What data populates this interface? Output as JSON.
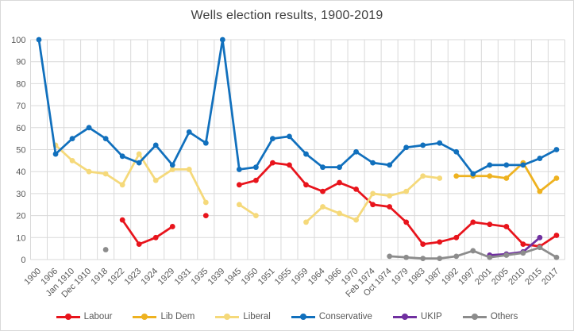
{
  "chart_data": {
    "type": "line",
    "title": "Wells election results, 1900-2019",
    "categories": [
      "1900",
      "1906",
      "Jan 1910",
      "Dec 1910",
      "1918",
      "1922",
      "1923",
      "1924",
      "1929",
      "1931",
      "1935",
      "1939",
      "1945",
      "1950",
      "1951",
      "1955",
      "1959",
      "1964",
      "1966",
      "1970",
      "Feb 1974",
      "Oct 1974",
      "1979",
      "1983",
      "1987",
      "1992",
      "1997",
      "2001",
      "2005",
      "2010",
      "2015",
      "2017"
    ],
    "series": [
      {
        "name": "Labour",
        "color": "#e8141c",
        "values": [
          null,
          null,
          null,
          null,
          null,
          18,
          7,
          10,
          15,
          null,
          20,
          null,
          34,
          36,
          44,
          43,
          34,
          31,
          35,
          32,
          25,
          24,
          17,
          7,
          8,
          10,
          17,
          16,
          15,
          7,
          6,
          11
        ]
      },
      {
        "name": "Lib Dem",
        "color": "#eeb220",
        "values": [
          null,
          null,
          null,
          null,
          null,
          null,
          null,
          null,
          null,
          null,
          null,
          null,
          null,
          null,
          null,
          null,
          null,
          null,
          null,
          null,
          null,
          null,
          null,
          null,
          null,
          38,
          38,
          38,
          37,
          44,
          31,
          37
        ]
      },
      {
        "name": "Liberal",
        "color": "#f5d97a",
        "values": [
          null,
          52,
          45,
          40,
          39,
          34,
          48,
          36,
          41,
          41,
          26,
          null,
          25,
          20,
          null,
          null,
          17,
          24,
          21,
          18,
          30,
          29,
          31,
          38,
          37,
          null,
          null,
          null,
          null,
          null,
          null,
          null
        ]
      },
      {
        "name": "Conservative",
        "color": "#1170bd",
        "values": [
          100,
          48,
          55,
          60,
          55,
          47,
          44,
          52,
          43,
          58,
          53,
          100,
          41,
          42,
          55,
          56,
          48,
          42,
          42,
          49,
          44,
          43,
          51,
          52,
          53,
          49,
          39,
          43,
          43,
          43,
          46,
          50
        ]
      },
      {
        "name": "UKIP",
        "color": "#7030a0",
        "values": [
          null,
          null,
          null,
          null,
          null,
          null,
          null,
          null,
          null,
          null,
          null,
          null,
          null,
          null,
          null,
          null,
          null,
          null,
          null,
          null,
          null,
          null,
          null,
          null,
          null,
          null,
          null,
          2,
          2.5,
          3.5,
          10,
          null
        ]
      },
      {
        "name": "Others",
        "color": "#8c8c8c",
        "values": [
          null,
          null,
          null,
          null,
          4.5,
          null,
          null,
          null,
          null,
          null,
          null,
          null,
          null,
          null,
          null,
          null,
          null,
          null,
          null,
          null,
          null,
          1.5,
          1,
          0.5,
          0.5,
          1.5,
          4,
          1,
          2,
          3,
          5.5,
          1
        ]
      }
    ],
    "ylim": [
      0,
      100
    ],
    "ytick_step": 10,
    "y_tick_labels": [
      "0",
      "10",
      "20",
      "30",
      "40",
      "50",
      "60",
      "70",
      "80",
      "90",
      "100"
    ],
    "grid": true,
    "legend_position": "bottom",
    "grid_color": "#d9d9d9",
    "axis_text_color": "#595959"
  }
}
